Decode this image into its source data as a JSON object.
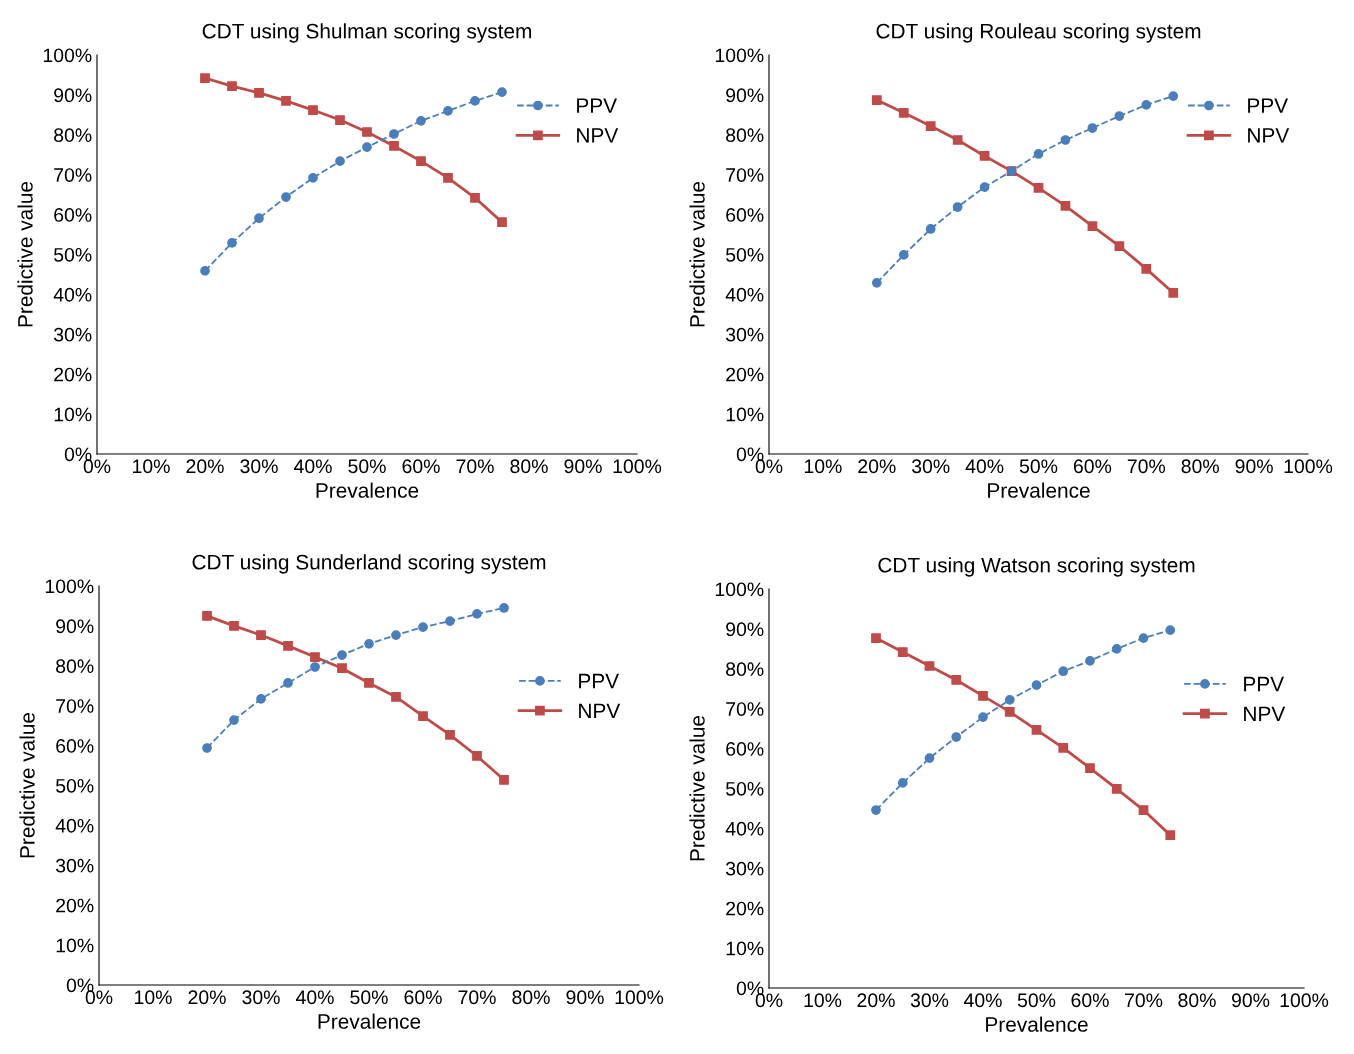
{
  "chart_data": [
    {
      "type": "line",
      "title": "CDT using Shulman scoring system",
      "xlabel": "Prevalence",
      "ylabel": "Predictive value",
      "legend": "upper right",
      "grid": false,
      "x": [
        20,
        25,
        30,
        35,
        40,
        45,
        50,
        55,
        60,
        65,
        70,
        75
      ],
      "xlim": [
        0,
        100
      ],
      "ylim": [
        0,
        100
      ],
      "xticks": [
        {
          "value": 0,
          "label": "0%"
        },
        {
          "value": 10,
          "label": "10%"
        },
        {
          "value": 20,
          "label": "20%"
        },
        {
          "value": 30,
          "label": "30%"
        },
        {
          "value": 40,
          "label": "40%"
        },
        {
          "value": 50,
          "label": "50%"
        },
        {
          "value": 60,
          "label": "60%"
        },
        {
          "value": 70,
          "label": "70%"
        },
        {
          "value": 80,
          "label": "80%"
        },
        {
          "value": 90,
          "label": "90%"
        },
        {
          "value": 100,
          "label": "100%"
        }
      ],
      "yticks": [
        {
          "value": 0,
          "label": "0%"
        },
        {
          "value": 10,
          "label": "10%"
        },
        {
          "value": 20,
          "label": "20%"
        },
        {
          "value": 30,
          "label": "30%"
        },
        {
          "value": 40,
          "label": "40%"
        },
        {
          "value": 50,
          "label": "50%"
        },
        {
          "value": 60,
          "label": "60%"
        },
        {
          "value": 70,
          "label": "70%"
        },
        {
          "value": 80,
          "label": "80%"
        },
        {
          "value": 90,
          "label": "90%"
        },
        {
          "value": 100,
          "label": "100%"
        }
      ],
      "series": [
        {
          "name": "PPV",
          "color": "#4a7ebb",
          "marker": "circle",
          "line_style": "dashed",
          "values": [
            45.9,
            52.9,
            59.1,
            64.4,
            69.2,
            73.4,
            76.9,
            80.2,
            83.5,
            86.0,
            88.5,
            90.7
          ]
        },
        {
          "name": "NPV",
          "color": "#be4b48",
          "marker": "square",
          "line_style": "solid",
          "values": [
            94.2,
            92.2,
            90.5,
            88.5,
            86.2,
            83.7,
            80.7,
            77.2,
            73.4,
            69.2,
            64.2,
            58.1
          ]
        }
      ]
    },
    {
      "type": "line",
      "title": "CDT using Rouleau scoring system",
      "xlabel": "Prevalence",
      "ylabel": "Predictive value",
      "legend": "upper right",
      "grid": false,
      "x": [
        20,
        25,
        30,
        35,
        40,
        45,
        50,
        55,
        60,
        65,
        70,
        75
      ],
      "xlim": [
        0,
        100
      ],
      "ylim": [
        0,
        100
      ],
      "xticks": [
        {
          "value": 0,
          "label": "0%"
        },
        {
          "value": 10,
          "label": "10%"
        },
        {
          "value": 20,
          "label": "20%"
        },
        {
          "value": 30,
          "label": "30%"
        },
        {
          "value": 40,
          "label": "40%"
        },
        {
          "value": 50,
          "label": "50%"
        },
        {
          "value": 60,
          "label": "60%"
        },
        {
          "value": 70,
          "label": "70%"
        },
        {
          "value": 80,
          "label": "80%"
        },
        {
          "value": 90,
          "label": "90%"
        },
        {
          "value": 100,
          "label": "100%"
        }
      ],
      "yticks": [
        {
          "value": 0,
          "label": "0%"
        },
        {
          "value": 10,
          "label": "10%"
        },
        {
          "value": 20,
          "label": "20%"
        },
        {
          "value": 30,
          "label": "30%"
        },
        {
          "value": 40,
          "label": "40%"
        },
        {
          "value": 50,
          "label": "50%"
        },
        {
          "value": 60,
          "label": "60%"
        },
        {
          "value": 70,
          "label": "70%"
        },
        {
          "value": 80,
          "label": "80%"
        },
        {
          "value": 90,
          "label": "90%"
        },
        {
          "value": 100,
          "label": "100%"
        }
      ],
      "series": [
        {
          "name": "PPV",
          "color": "#4a7ebb",
          "marker": "circle",
          "line_style": "dashed",
          "values": [
            42.9,
            49.9,
            56.4,
            61.9,
            66.9,
            70.9,
            75.2,
            78.7,
            81.7,
            84.7,
            87.5,
            89.7
          ]
        },
        {
          "name": "NPV",
          "color": "#be4b48",
          "marker": "square",
          "line_style": "solid",
          "values": [
            88.7,
            85.5,
            82.2,
            78.7,
            74.7,
            70.9,
            66.7,
            62.2,
            57.1,
            52.1,
            46.4,
            40.4
          ]
        }
      ]
    },
    {
      "type": "line",
      "title": "CDT using Sunderland scoring system",
      "xlabel": "Prevalence",
      "ylabel": "Predictive value",
      "legend": "right",
      "grid": false,
      "x": [
        20,
        25,
        30,
        35,
        40,
        45,
        50,
        55,
        60,
        65,
        70,
        75
      ],
      "xlim": [
        0,
        100
      ],
      "ylim": [
        0,
        100
      ],
      "xticks": [
        {
          "value": 0,
          "label": "0%"
        },
        {
          "value": 10,
          "label": "10%"
        },
        {
          "value": 20,
          "label": "20%"
        },
        {
          "value": 30,
          "label": "30%"
        },
        {
          "value": 40,
          "label": "40%"
        },
        {
          "value": 50,
          "label": "50%"
        },
        {
          "value": 60,
          "label": "60%"
        },
        {
          "value": 70,
          "label": "70%"
        },
        {
          "value": 80,
          "label": "80%"
        },
        {
          "value": 90,
          "label": "90%"
        },
        {
          "value": 100,
          "label": "100%"
        }
      ],
      "yticks": [
        {
          "value": 0,
          "label": "0%"
        },
        {
          "value": 10,
          "label": "10%"
        },
        {
          "value": 20,
          "label": "20%"
        },
        {
          "value": 30,
          "label": "30%"
        },
        {
          "value": 40,
          "label": "40%"
        },
        {
          "value": 50,
          "label": "50%"
        },
        {
          "value": 60,
          "label": "60%"
        },
        {
          "value": 70,
          "label": "70%"
        },
        {
          "value": 80,
          "label": "80%"
        },
        {
          "value": 90,
          "label": "90%"
        },
        {
          "value": 100,
          "label": "100%"
        }
      ],
      "series": [
        {
          "name": "PPV",
          "color": "#4a7ebb",
          "marker": "circle",
          "line_style": "dashed",
          "values": [
            59.4,
            66.4,
            71.7,
            75.7,
            79.7,
            82.7,
            85.5,
            87.7,
            89.7,
            91.2,
            93.0,
            94.5
          ]
        },
        {
          "name": "NPV",
          "color": "#be4b48",
          "marker": "square",
          "line_style": "solid",
          "values": [
            92.5,
            90.0,
            87.7,
            85.0,
            82.2,
            79.4,
            75.7,
            72.2,
            67.4,
            62.7,
            57.4,
            51.4
          ]
        }
      ]
    },
    {
      "type": "line",
      "title": "CDT using Watson scoring system",
      "xlabel": "Prevalence",
      "ylabel": "Predictive value",
      "legend": "right",
      "grid": false,
      "x": [
        20,
        25,
        30,
        35,
        40,
        45,
        50,
        55,
        60,
        65,
        70,
        75
      ],
      "xlim": [
        0,
        100
      ],
      "ylim": [
        0,
        100
      ],
      "xticks": [
        {
          "value": 0,
          "label": "0%"
        },
        {
          "value": 10,
          "label": "10%"
        },
        {
          "value": 20,
          "label": "20%"
        },
        {
          "value": 30,
          "label": "30%"
        },
        {
          "value": 40,
          "label": "40%"
        },
        {
          "value": 50,
          "label": "50%"
        },
        {
          "value": 60,
          "label": "60%"
        },
        {
          "value": 70,
          "label": "70%"
        },
        {
          "value": 80,
          "label": "80%"
        },
        {
          "value": 90,
          "label": "90%"
        },
        {
          "value": 100,
          "label": "100%"
        }
      ],
      "yticks": [
        {
          "value": 0,
          "label": "0%"
        },
        {
          "value": 10,
          "label": "10%"
        },
        {
          "value": 20,
          "label": "20%"
        },
        {
          "value": 30,
          "label": "30%"
        },
        {
          "value": 40,
          "label": "40%"
        },
        {
          "value": 50,
          "label": "50%"
        },
        {
          "value": 60,
          "label": "60%"
        },
        {
          "value": 70,
          "label": "70%"
        },
        {
          "value": 80,
          "label": "80%"
        },
        {
          "value": 90,
          "label": "90%"
        },
        {
          "value": 100,
          "label": "100%"
        }
      ],
      "series": [
        {
          "name": "PPV",
          "color": "#4a7ebb",
          "marker": "circle",
          "line_style": "dashed",
          "values": [
            44.6,
            51.4,
            57.6,
            62.9,
            67.9,
            72.2,
            75.9,
            79.4,
            82.0,
            85.0,
            87.7,
            89.7
          ]
        },
        {
          "name": "NPV",
          "color": "#be4b48",
          "marker": "square",
          "line_style": "solid",
          "values": [
            87.7,
            84.2,
            80.7,
            77.2,
            73.2,
            69.2,
            64.7,
            60.2,
            55.1,
            49.9,
            44.6,
            38.3
          ]
        }
      ]
    }
  ]
}
